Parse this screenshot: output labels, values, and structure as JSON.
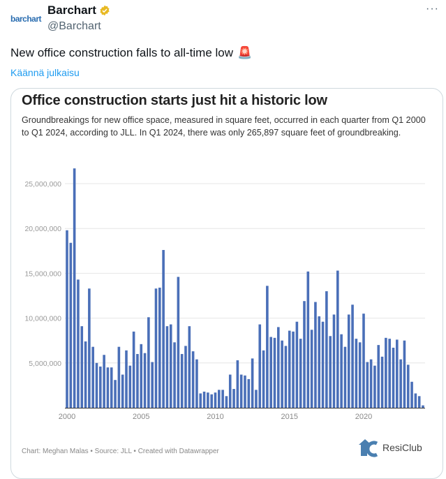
{
  "post": {
    "avatar_text": "barchart",
    "author_name": "Barchart",
    "author_handle": "@Barchart",
    "more_label": "···",
    "text": "New office construction falls to all-time low",
    "emoji": "🚨",
    "translate_label": "Käännä julkaisu"
  },
  "colors": {
    "bar": "#4a6fb8",
    "link": "#1d9bf0",
    "verified": "#e8b923"
  },
  "card": {
    "footer": "Chart: Meghan Malas • Source: JLL • Created with Datawrapper",
    "logo_text": "ResiClub"
  },
  "chart_data": {
    "type": "bar",
    "title": "Office construction starts just hit a historic low",
    "subtitle": "Groundbreakings for new office space, measured in square feet, occurred in each quarter from Q1 2000 to Q1 2024, according to JLL. In Q1 2024, there was only 265,897 square feet of groundbreaking.",
    "xlabel": "",
    "ylabel": "Square feet",
    "ylim": [
      0,
      27000000
    ],
    "yticks": [
      5000000,
      10000000,
      15000000,
      20000000,
      25000000
    ],
    "ytick_labels": [
      "5,000,000",
      "10,000,000",
      "15,000,000",
      "20,000,000",
      "25,000,000"
    ],
    "xtick_labels": [
      "2000",
      "2005",
      "2010",
      "2015",
      "2020"
    ],
    "grid": true,
    "start": "Q1 2000",
    "values_millions": [
      19.8,
      18.4,
      26.7,
      14.3,
      9.1,
      7.4,
      13.3,
      6.8,
      5.0,
      4.6,
      5.9,
      4.5,
      4.5,
      3.1,
      6.8,
      3.7,
      6.4,
      4.7,
      8.5,
      6.0,
      7.1,
      6.1,
      10.1,
      5.1,
      13.3,
      13.4,
      17.6,
      9.1,
      9.3,
      7.3,
      14.6,
      6.0,
      6.9,
      9.1,
      6.3,
      5.4,
      1.6,
      1.8,
      1.7,
      1.5,
      1.7,
      2.0,
      2.0,
      1.3,
      3.7,
      2.1,
      5.3,
      3.7,
      3.6,
      3.2,
      5.5,
      2.0,
      9.3,
      6.4,
      13.6,
      7.9,
      7.8,
      9.0,
      7.5,
      6.9,
      8.6,
      8.5,
      9.6,
      7.7,
      11.9,
      15.2,
      8.7,
      11.8,
      10.2,
      9.6,
      13.0,
      8.0,
      10.4,
      15.3,
      8.2,
      6.8,
      10.4,
      11.5,
      7.7,
      7.3,
      10.5,
      5.1,
      5.4,
      4.7,
      7.0,
      5.7,
      7.8,
      7.7,
      6.7,
      7.6,
      5.4,
      7.5,
      4.8,
      2.9,
      1.6,
      1.3,
      0.266
    ]
  }
}
